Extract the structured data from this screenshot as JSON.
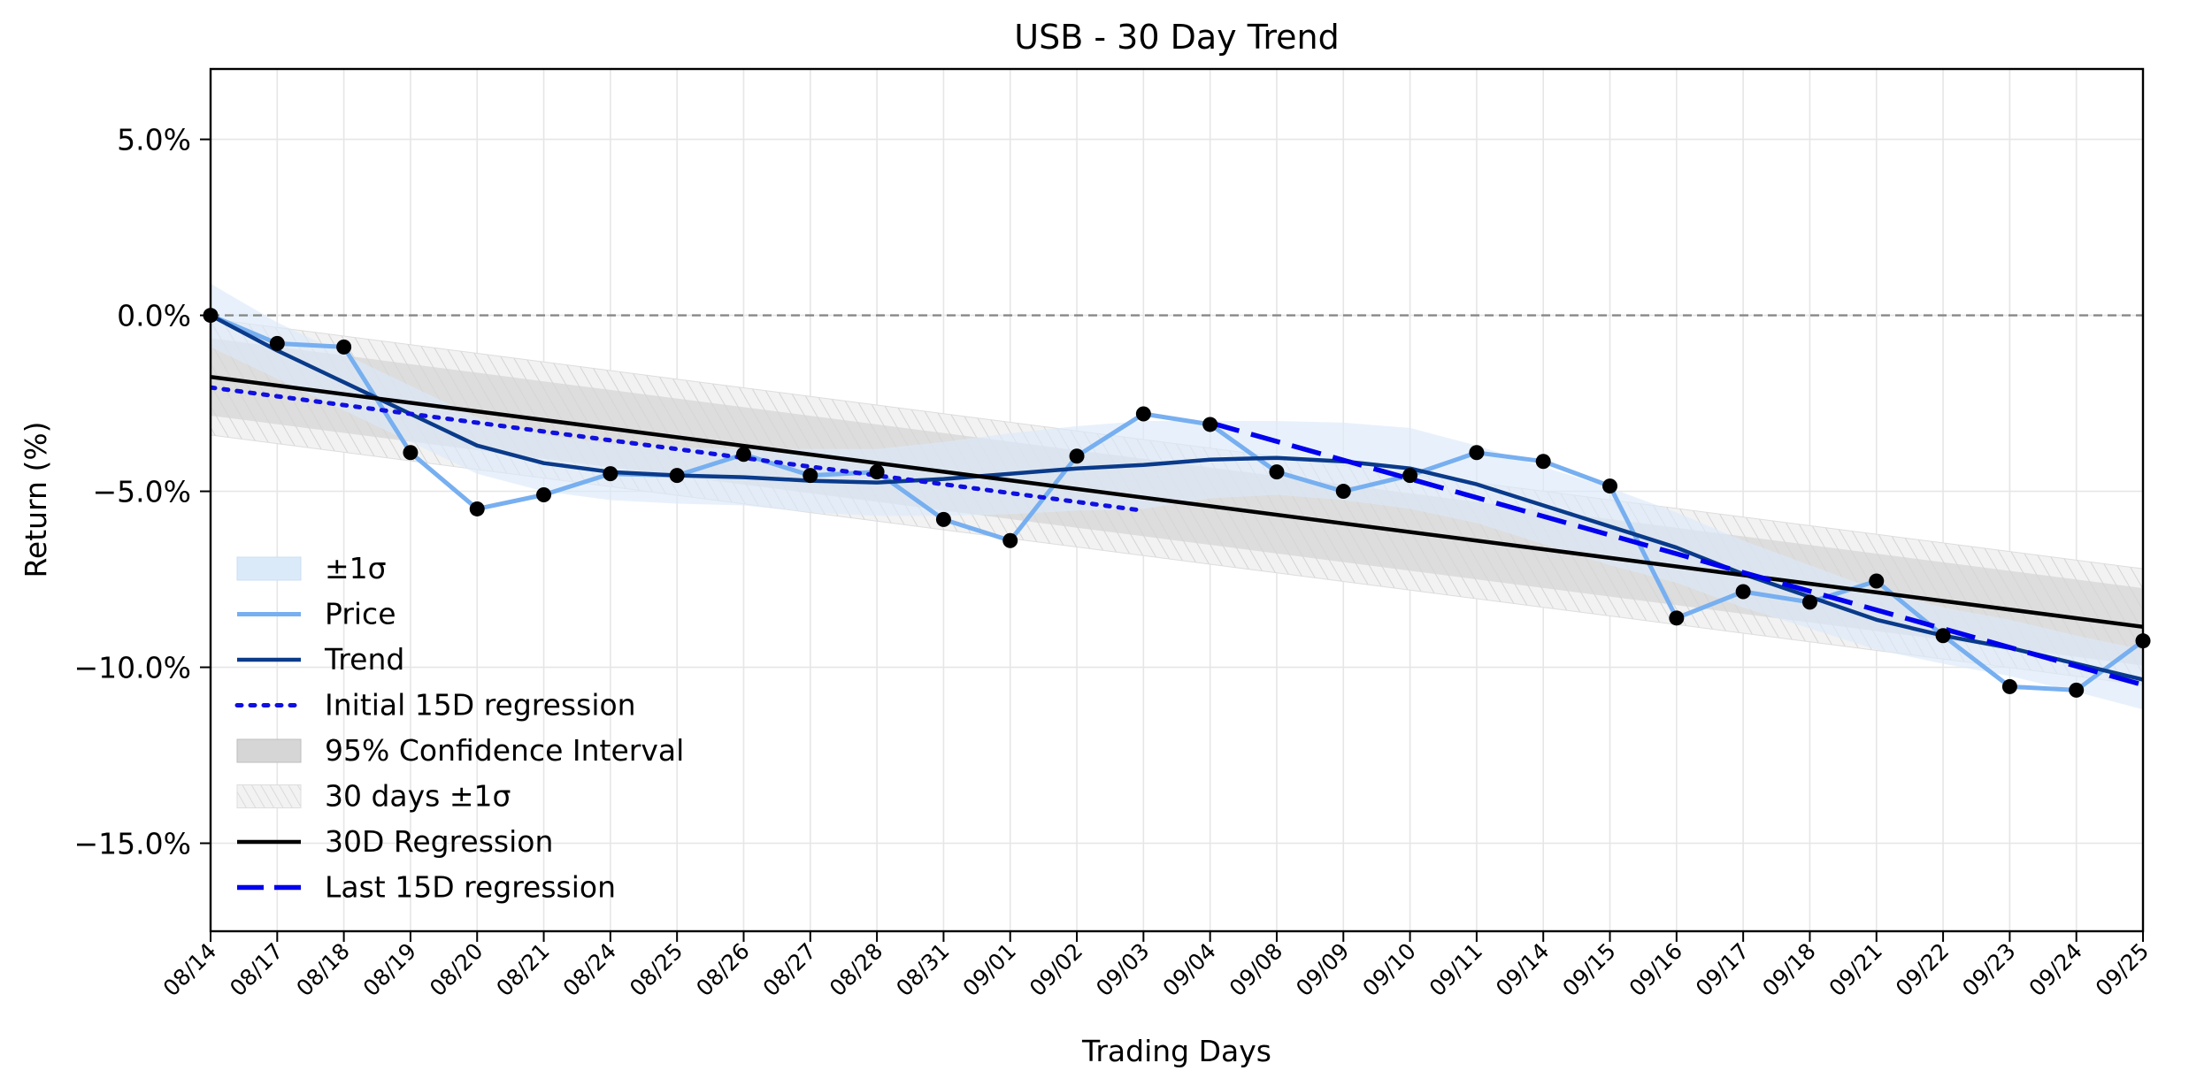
{
  "chart_data": {
    "type": "line",
    "title": "USB - 30 Day Trend",
    "xlabel": "Trading Days",
    "ylabel": "Return (%)",
    "ylim": [
      -17.5,
      7.0
    ],
    "yticks": [
      5.0,
      0.0,
      -5.0,
      -10.0,
      -15.0
    ],
    "ytick_labels": [
      "5.0%",
      "0.0%",
      "−5.0%",
      "−10.0%",
      "−15.0%"
    ],
    "grid": true,
    "zero_line": true,
    "legend_position": "lower-left",
    "categories": [
      "08/14",
      "08/17",
      "08/18",
      "08/19",
      "08/20",
      "08/21",
      "08/24",
      "08/25",
      "08/26",
      "08/27",
      "08/28",
      "08/31",
      "09/01",
      "09/02",
      "09/03",
      "09/04",
      "09/08",
      "09/09",
      "09/10",
      "09/11",
      "09/14",
      "09/15",
      "09/16",
      "09/17",
      "09/18",
      "09/21",
      "09/22",
      "09/23",
      "09/24",
      "09/25"
    ],
    "price": [
      0.0,
      -0.8,
      -0.9,
      -3.9,
      -5.5,
      -5.1,
      -4.5,
      -4.55,
      -3.95,
      -4.55,
      -4.45,
      -5.8,
      -6.4,
      -4.0,
      -2.8,
      -3.1,
      -4.45,
      -5.0,
      -4.55,
      -3.9,
      -4.15,
      -4.85,
      -8.6,
      -7.85,
      -8.15,
      -7.55,
      -9.1,
      -10.55,
      -10.65,
      -9.25
    ],
    "trend": [
      0.0,
      -1.0,
      -1.9,
      -2.8,
      -3.7,
      -4.2,
      -4.45,
      -4.55,
      -4.6,
      -4.7,
      -4.75,
      -4.65,
      -4.5,
      -4.35,
      -4.25,
      -4.1,
      -4.05,
      -4.15,
      -4.35,
      -4.8,
      -5.4,
      -6.0,
      -6.6,
      -7.35,
      -8.0,
      -8.65,
      -9.1,
      -9.45,
      -9.9,
      -10.35
    ],
    "sigma_band": {
      "upper": [
        0.9,
        -0.2,
        -1.1,
        -2.0,
        -2.9,
        -3.4,
        -3.65,
        -3.75,
        -3.8,
        -3.8,
        -3.8,
        -3.6,
        -3.35,
        -3.15,
        -3.0,
        -3.0,
        -3.0,
        -3.05,
        -3.2,
        -3.7,
        -4.3,
        -4.9,
        -5.6,
        -6.4,
        -7.1,
        -7.8,
        -8.3,
        -8.65,
        -9.1,
        -9.5
      ],
      "lower": [
        -0.9,
        -1.8,
        -2.7,
        -3.6,
        -4.5,
        -5.0,
        -5.25,
        -5.35,
        -5.4,
        -5.6,
        -5.7,
        -5.7,
        -5.65,
        -5.55,
        -5.5,
        -5.2,
        -5.1,
        -5.25,
        -5.5,
        -5.9,
        -6.5,
        -7.1,
        -7.6,
        -8.3,
        -8.9,
        -9.5,
        -9.9,
        -10.25,
        -10.7,
        -11.2
      ]
    },
    "regression_30d": {
      "start": -1.75,
      "end": -8.85
    },
    "ci_95_halfwidth": 1.1,
    "sigma_30d_halfwidth": 1.65,
    "regression_initial_15d": {
      "x_start": 0,
      "x_end": 14,
      "start": -2.05,
      "end": -5.55
    },
    "regression_last_15d": {
      "x_start": 15,
      "x_end": 29,
      "start": -3.05,
      "end": -10.5
    },
    "colors": {
      "price": "#77aff0",
      "trend": "#0a3a8a",
      "sigma_fill": "#dbeaf9",
      "ci_fill": "#d6d6d6",
      "hatch": "#cfcfcf",
      "regression_30d": "#000000",
      "initial_15d": "#1010e0",
      "last_15d": "#0000ee",
      "points": "#000000",
      "zero_line": "#888888",
      "grid": "#e6e6e6"
    },
    "legend": [
      {
        "key": "sigma",
        "label": "±1σ"
      },
      {
        "key": "price",
        "label": "Price"
      },
      {
        "key": "trend",
        "label": "Trend"
      },
      {
        "key": "initial",
        "label": "Initial 15D regression"
      },
      {
        "key": "ci",
        "label": "95% Confidence Interval"
      },
      {
        "key": "sigma30",
        "label": "30 days ±1σ"
      },
      {
        "key": "reg30",
        "label": "30D Regression"
      },
      {
        "key": "last",
        "label": "Last 15D regression"
      }
    ]
  }
}
